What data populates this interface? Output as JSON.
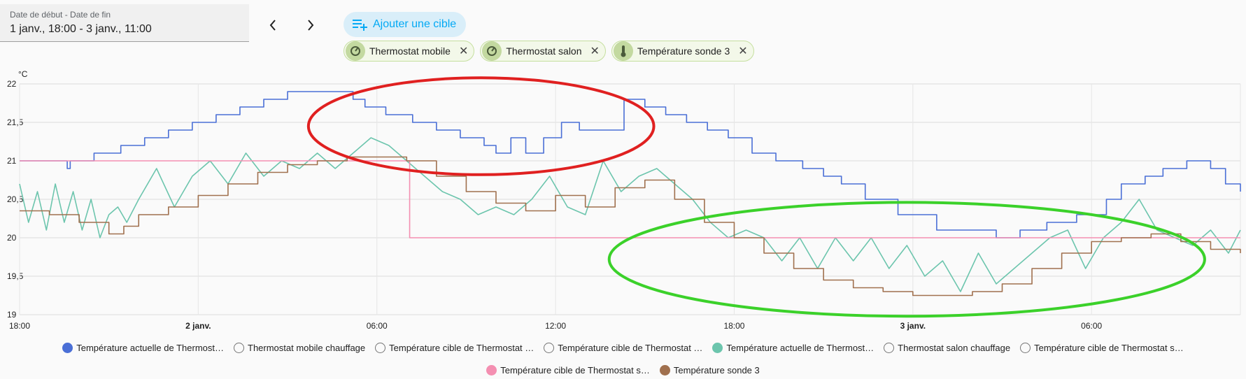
{
  "date_picker": {
    "label": "Date de début - Date de fin",
    "value": "1 janv., 18:00 - 3 janv., 11:00"
  },
  "nav": {
    "prev_icon": "chevron-left-icon",
    "next_icon": "chevron-right-icon"
  },
  "add_target": {
    "label": "Ajouter une cible",
    "icon": "playlist-plus-icon"
  },
  "chips": [
    {
      "label": "Thermostat mobile",
      "icon": "thermostat-icon"
    },
    {
      "label": "Thermostat salon",
      "icon": "thermostat-icon"
    },
    {
      "label": "Température sonde 3",
      "icon": "thermometer-icon"
    }
  ],
  "chart_data": {
    "type": "line",
    "unit_label": "°C",
    "x_ticks": [
      {
        "label": "18:00",
        "bold": false
      },
      {
        "label": "2 janv.",
        "bold": true
      },
      {
        "label": "06:00",
        "bold": false
      },
      {
        "label": "12:00",
        "bold": false
      },
      {
        "label": "18:00",
        "bold": false
      },
      {
        "label": "3 janv.",
        "bold": true
      },
      {
        "label": "06:00",
        "bold": false
      }
    ],
    "x_tick_hours": [
      0,
      6,
      12,
      18,
      24,
      30,
      36
    ],
    "x_range_hours": [
      0,
      41
    ],
    "y_ticks": [
      "22",
      "21,5",
      "21",
      "20,5",
      "20",
      "19,5",
      "19"
    ],
    "ylim": [
      19,
      22
    ],
    "grid": true,
    "series": [
      {
        "name": "Température actuelle de Thermost…",
        "color": "#4a6fd6",
        "step": true,
        "x": [
          0,
          1.6,
          1.7,
          2.5,
          3.4,
          4.2,
          5.0,
          5.8,
          6.6,
          7.4,
          8.2,
          9.0,
          9.8,
          10.6,
          11.2,
          11.6,
          12.3,
          13.2,
          14.0,
          14.8,
          15.6,
          16.0,
          16.5,
          17.0,
          17.6,
          18.2,
          18.8,
          19.4,
          20.3,
          21.0,
          21.7,
          22.4,
          23.1,
          23.8,
          24.6,
          25.4,
          26.3,
          27.0,
          27.6,
          28.4,
          29.5,
          30.8,
          32.0,
          32.8,
          33.6,
          34.5,
          35.5,
          36.5,
          37.0,
          37.8,
          38.4,
          39.2,
          40.0,
          40.5,
          41.0
        ],
        "y": [
          21.0,
          20.9,
          21.0,
          21.1,
          21.2,
          21.3,
          21.4,
          21.5,
          21.6,
          21.7,
          21.8,
          21.9,
          21.9,
          21.9,
          21.8,
          21.7,
          21.6,
          21.5,
          21.4,
          21.3,
          21.2,
          21.1,
          21.3,
          21.1,
          21.3,
          21.5,
          21.4,
          21.4,
          21.8,
          21.7,
          21.6,
          21.5,
          21.4,
          21.3,
          21.1,
          21.0,
          20.9,
          20.8,
          20.7,
          20.5,
          20.3,
          20.1,
          20.1,
          20.0,
          20.1,
          20.2,
          20.3,
          20.5,
          20.7,
          20.8,
          20.9,
          21.0,
          20.9,
          20.7,
          20.6
        ]
      },
      {
        "name": "Thermostat mobile chauffage",
        "color": "#757575",
        "hidden": true,
        "x": [],
        "y": []
      },
      {
        "name": "Température cible de Thermostat …",
        "color": "#757575",
        "hidden": true,
        "x": [],
        "y": []
      },
      {
        "name": "Température cible de Thermostat …",
        "color": "#757575",
        "hidden": true,
        "x": [],
        "y": []
      },
      {
        "name": "Température actuelle de Thermost…",
        "color": "#6cc5ad",
        "step": false,
        "x": [
          0,
          0.3,
          0.6,
          0.9,
          1.2,
          1.5,
          1.8,
          2.1,
          2.4,
          2.7,
          3.0,
          3.3,
          3.6,
          4.0,
          4.6,
          5.2,
          5.8,
          6.4,
          7.0,
          7.6,
          8.2,
          8.8,
          9.4,
          10.0,
          10.6,
          11.2,
          11.8,
          12.4,
          13.0,
          13.6,
          14.2,
          14.8,
          15.4,
          16.0,
          16.6,
          17.2,
          17.8,
          18.4,
          19.0,
          19.6,
          20.2,
          20.8,
          21.4,
          22.0,
          22.6,
          23.2,
          23.8,
          24.4,
          25.0,
          25.6,
          26.2,
          26.8,
          27.4,
          28.0,
          28.6,
          29.2,
          29.8,
          30.4,
          31.0,
          31.6,
          32.2,
          32.8,
          33.4,
          34.0,
          34.6,
          35.2,
          35.8,
          36.4,
          37.0,
          37.6,
          38.2,
          38.8,
          39.4,
          40.0,
          40.6,
          41.0
        ],
        "y": [
          20.7,
          20.2,
          20.6,
          20.1,
          20.7,
          20.2,
          20.6,
          20.1,
          20.5,
          20.0,
          20.3,
          20.4,
          20.2,
          20.5,
          20.9,
          20.4,
          20.8,
          21.0,
          20.7,
          21.1,
          20.8,
          21.0,
          20.9,
          21.1,
          20.9,
          21.1,
          21.3,
          21.2,
          21.0,
          20.8,
          20.6,
          20.5,
          20.3,
          20.4,
          20.3,
          20.5,
          20.8,
          20.4,
          20.3,
          21.0,
          20.6,
          20.8,
          20.9,
          20.7,
          20.5,
          20.2,
          20.0,
          20.1,
          20.0,
          19.7,
          20.0,
          19.6,
          20.0,
          19.7,
          20.0,
          19.6,
          19.9,
          19.5,
          19.7,
          19.3,
          19.8,
          19.4,
          19.6,
          19.8,
          20.0,
          20.1,
          19.6,
          20.0,
          20.2,
          20.5,
          20.1,
          20.0,
          19.9,
          20.1,
          19.8,
          20.1
        ]
      },
      {
        "name": "Thermostat salon chauffage",
        "color": "#757575",
        "hidden": true,
        "x": [],
        "y": []
      },
      {
        "name": "Température cible de Thermostat s…",
        "color": "#757575",
        "hidden": true,
        "x": [],
        "y": []
      },
      {
        "name": "Température cible de Thermostat s…",
        "color": "#f48fb1",
        "step": true,
        "x": [
          0,
          13.0,
          13.1,
          41.0
        ],
        "y": [
          21.0,
          21.0,
          20.0,
          20.0
        ]
      },
      {
        "name": "Température sonde 3",
        "color": "#a0704e",
        "step": true,
        "x": [
          0,
          1,
          2,
          3,
          3.5,
          4,
          5,
          6,
          7,
          8,
          9,
          10,
          11,
          12,
          13,
          14,
          15,
          16,
          17,
          18,
          19,
          20,
          21,
          22,
          23,
          24,
          25,
          26,
          27,
          28,
          29,
          30,
          31,
          32,
          33,
          34,
          35,
          36,
          37,
          38,
          39,
          40,
          41
        ],
        "y": [
          20.35,
          20.3,
          20.2,
          20.05,
          20.15,
          20.3,
          20.4,
          20.55,
          20.7,
          20.85,
          20.95,
          21.0,
          21.05,
          21.05,
          21.0,
          20.8,
          20.6,
          20.45,
          20.35,
          20.55,
          20.4,
          20.65,
          20.75,
          20.5,
          20.2,
          20.0,
          19.8,
          19.6,
          19.45,
          19.35,
          19.3,
          19.25,
          19.25,
          19.3,
          19.4,
          19.6,
          19.8,
          19.95,
          20.0,
          20.05,
          19.95,
          19.85,
          19.8
        ]
      }
    ],
    "legend_rows": [
      [
        0,
        1,
        2,
        3,
        4,
        5,
        6
      ],
      [
        7,
        8
      ]
    ],
    "annotations": [
      {
        "shape": "ellipse",
        "color": "#e02020",
        "cx_hours": 15.5,
        "cy": 21.45,
        "rx_hours": 5.8,
        "ry": 0.63
      },
      {
        "shape": "ellipse",
        "color": "#3bd12a",
        "cx_hours": 29.8,
        "cy": 19.72,
        "rx_hours": 10.0,
        "ry": 0.74
      }
    ]
  }
}
